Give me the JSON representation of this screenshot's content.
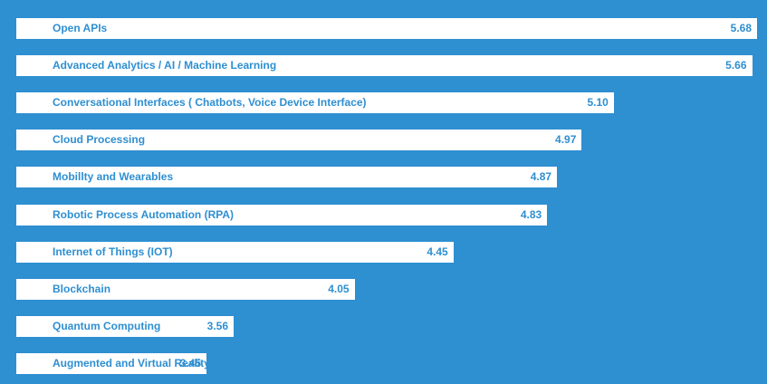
{
  "chart_data": {
    "type": "bar",
    "orientation": "horizontal",
    "categories": [
      "Open APIs",
      "Advanced Analytics / AI / Machine Learning",
      "Conversational Interfaces ( Chatbots, Voice Device Interface)",
      "Cloud Processing",
      "Mobillty and Wearables",
      "Robotic Process Automation (RPA)",
      "Internet of Things (IOT)",
      "Blockchain",
      "Quantum Computing",
      "Augmented and Virtual Reality"
    ],
    "values": [
      5.68,
      5.66,
      5.1,
      4.97,
      4.87,
      4.83,
      4.45,
      4.05,
      3.56,
      3.45
    ],
    "value_labels": [
      "5.68",
      "5.66",
      "5.10",
      "4.97",
      "4.87",
      "4.83",
      "4.45",
      "4.05",
      "3.56",
      "3.45"
    ],
    "grid": false,
    "legend": "none"
  },
  "colors": {
    "background": "#2e8fd1",
    "bar": "#ffffff",
    "text": "#2e8fd1"
  }
}
